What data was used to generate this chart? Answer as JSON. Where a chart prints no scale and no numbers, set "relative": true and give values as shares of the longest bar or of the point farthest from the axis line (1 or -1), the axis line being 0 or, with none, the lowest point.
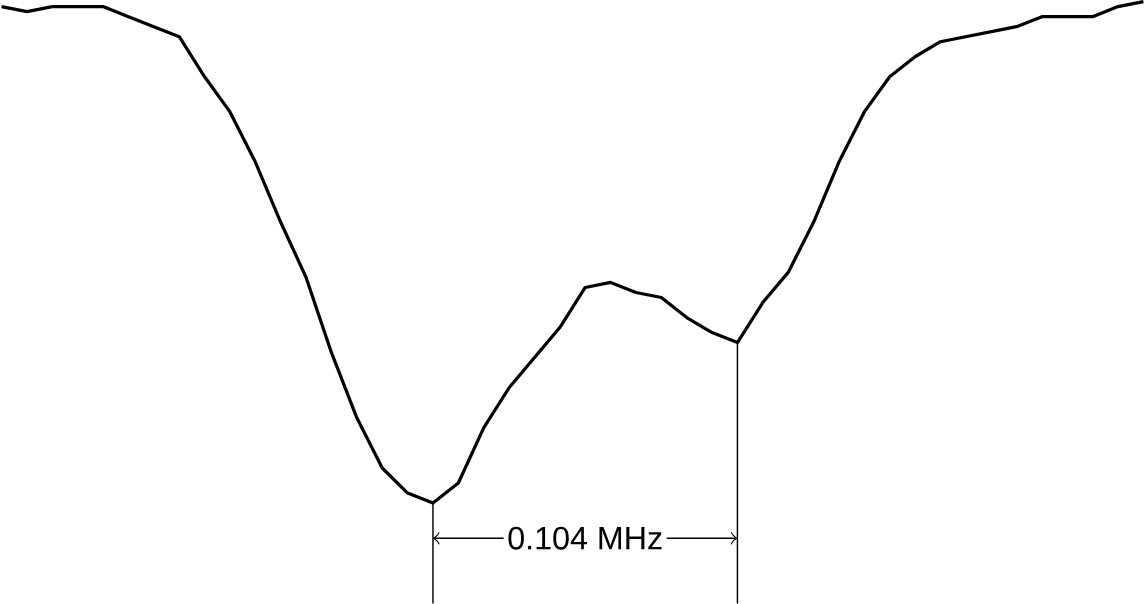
{
  "chart_data": {
    "type": "line",
    "relative": true,
    "categories": [
      null,
      null,
      null,
      null,
      null,
      null,
      null,
      null,
      null,
      null,
      null,
      null,
      null,
      null,
      null,
      null,
      null,
      null,
      null,
      null,
      null,
      null,
      null,
      null,
      null,
      null,
      null,
      null,
      null,
      null,
      null,
      null,
      null,
      null,
      null,
      null,
      null,
      null,
      null,
      null,
      null,
      null,
      null,
      null,
      null,
      null
    ],
    "series": [
      {
        "color": "#000000",
        "values": [
          0.99,
          0.98,
          0.99,
          0.99,
          0.99,
          0.97,
          0.95,
          0.93,
          0.85,
          0.78,
          0.68,
          0.56,
          0.45,
          0.3,
          0.17,
          0.07,
          0.02,
          0,
          0.04,
          0.15,
          0.23,
          0.29,
          0.35,
          0.43,
          0.44,
          0.42,
          0.41,
          0.37,
          0.34,
          0.32,
          0.4,
          0.46,
          0.56,
          0.68,
          0.78,
          0.85,
          0.89,
          0.92,
          0.93,
          0.94,
          0.95,
          0.97,
          0.97,
          0.97,
          0.99,
          1
        ]
      }
    ],
    "annotations": [
      "0.104 MHz"
    ]
  }
}
